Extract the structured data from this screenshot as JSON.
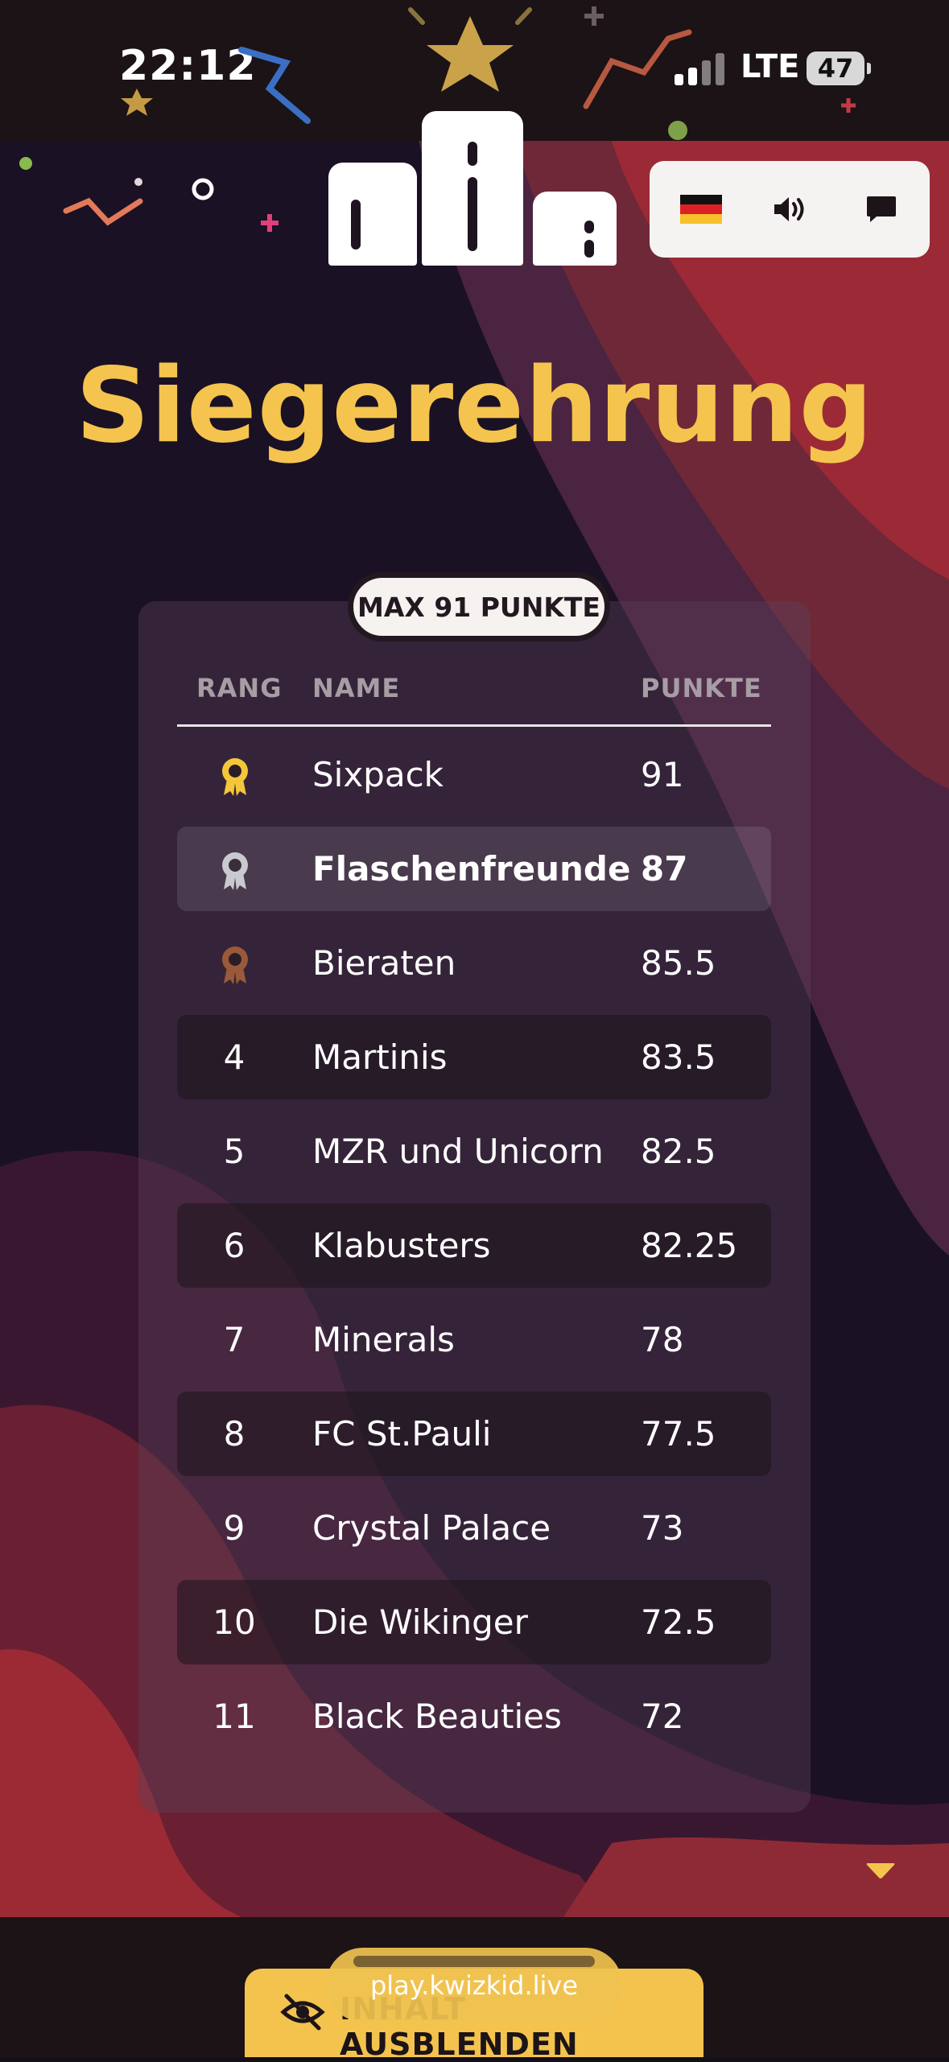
{
  "status": {
    "time": "22:12",
    "network": "LTE",
    "battery": "47"
  },
  "controls": {
    "flag_icon": "german-flag-icon",
    "sound_icon": "speaker-icon",
    "chat_icon": "chat-bubble-icon"
  },
  "title": "Siegerehrung",
  "badge": "MAX 91 PUNKTE",
  "table": {
    "headers": {
      "rank": "RANG",
      "name": "NAME",
      "points": "PUNKTE"
    },
    "rows": [
      {
        "rank": "",
        "medal": "gold",
        "name": "Sixpack",
        "points": "91"
      },
      {
        "rank": "",
        "medal": "silver",
        "name": "Flaschenfreunde",
        "points": "87",
        "highlight": true
      },
      {
        "rank": "",
        "medal": "bronze",
        "name": "Bieraten",
        "points": "85.5"
      },
      {
        "rank": "4",
        "name": "Martinis",
        "points": "83.5"
      },
      {
        "rank": "5",
        "name": "MZR und Unicorn",
        "points": "82.5"
      },
      {
        "rank": "6",
        "name": "Klabusters",
        "points": "82.25"
      },
      {
        "rank": "7",
        "name": "Minerals",
        "points": "78"
      },
      {
        "rank": "8",
        "name": "FC St.Pauli",
        "points": "77.5"
      },
      {
        "rank": "9",
        "name": "Crystal Palace",
        "points": "73"
      },
      {
        "rank": "10",
        "name": "Die Wikinger",
        "points": "72.5"
      },
      {
        "rank": "11",
        "name": "Black Beauties",
        "points": "72"
      }
    ]
  },
  "bottom": {
    "hide_button_label": "INHALT AUSBLENDEN",
    "url": "play.kwizkid.live"
  },
  "colors": {
    "accent": "#f4c44e",
    "gold": "#f4c63a",
    "silver": "#c9c9cf",
    "bronze": "#9a5a3a",
    "background": "#150f1a"
  }
}
